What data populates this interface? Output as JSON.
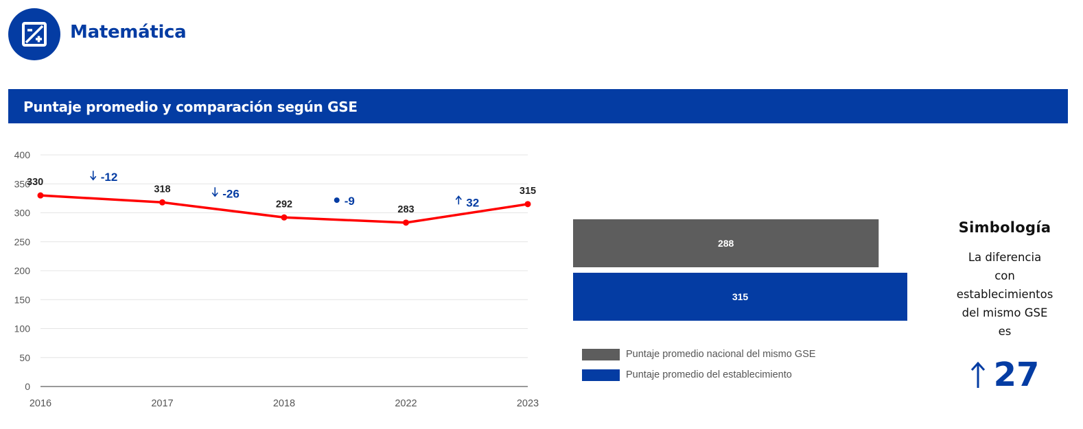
{
  "header": {
    "subject": "Matemática",
    "icon": "math-plus-minus-icon"
  },
  "section": {
    "title": "Puntaje promedio y comparación según GSE"
  },
  "colors": {
    "brand_blue": "#043ca3",
    "line_red": "#ff0000",
    "bar_gray": "#5d5d5d",
    "grid": "#e4e4e4"
  },
  "chart_data": [
    {
      "type": "line",
      "x": [
        "2016",
        "2017",
        "2018",
        "2022",
        "2023"
      ],
      "series": [
        {
          "values": [
            330,
            318,
            292,
            283,
            315
          ]
        }
      ],
      "data_labels": [
        "330",
        "318",
        "292",
        "283",
        "315"
      ],
      "ylim": [
        0,
        400
      ],
      "yticks": [
        0,
        50,
        100,
        150,
        200,
        250,
        300,
        350,
        400
      ],
      "grid": true,
      "annotations": [
        {
          "symbol": "down-arrow",
          "text": "-12",
          "between": [
            "2016",
            "2017"
          ]
        },
        {
          "symbol": "down-arrow",
          "text": "-26",
          "between": [
            "2017",
            "2018"
          ]
        },
        {
          "symbol": "dot",
          "text": "-9",
          "between": [
            "2018",
            "2022"
          ]
        },
        {
          "symbol": "up-arrow",
          "text": "32",
          "between": [
            "2022",
            "2023"
          ]
        }
      ]
    },
    {
      "type": "bar",
      "orientation": "horizontal",
      "categories": [
        "Puntaje promedio nacional del mismo GSE",
        "Puntaje promedio del establecimiento"
      ],
      "values": [
        288,
        315
      ],
      "data_labels": [
        "288",
        "315"
      ],
      "legend_position": "bottom"
    }
  ],
  "legend": [
    {
      "label": "Puntaje promedio nacional del mismo GSE",
      "color": "#5d5d5d"
    },
    {
      "label": "Puntaje promedio del establecimiento",
      "color": "#043ca3"
    }
  ],
  "simbologia": {
    "title": "Simbología",
    "lines": [
      "La diferencia",
      "con",
      "establecimientos",
      "del mismo GSE",
      "es"
    ],
    "difference": "27",
    "difference_symbol": "up-arrow-icon"
  }
}
